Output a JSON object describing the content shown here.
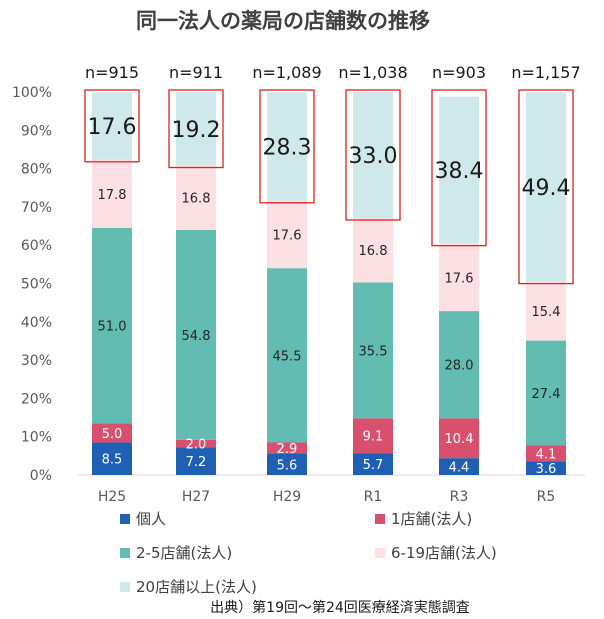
{
  "title": "同一法人の薬局の店舗数の推移",
  "source": "出典）第19回～第24回医療経済実態調査",
  "chart_data": {
    "type": "bar",
    "stacked": true,
    "categories": [
      "H25",
      "H27",
      "H29",
      "R1",
      "R3",
      "R5"
    ],
    "n_labels": [
      "n=915",
      "n=911",
      "n=1,089",
      "n=1,038",
      "n=903",
      "n=1,157"
    ],
    "y_ticks": [
      "0%",
      "10%",
      "20%",
      "30%",
      "40%",
      "50%",
      "60%",
      "70%",
      "80%",
      "90%",
      "100%"
    ],
    "ylim": [
      0,
      100
    ],
    "series": [
      {
        "name": "個人",
        "color": "#1f5fb4",
        "values": [
          8.5,
          7.2,
          5.6,
          5.7,
          4.4,
          3.6
        ],
        "labels": [
          "8.5",
          "7.2",
          "5.6",
          "5.7",
          "4.4",
          "3.6"
        ]
      },
      {
        "name": "1店舗(法人)",
        "color": "#d9506f",
        "values": [
          5.0,
          2.0,
          2.9,
          9.1,
          10.4,
          4.1
        ],
        "labels": [
          "5.0",
          "2.0",
          "2.9",
          "9.1",
          "10.4",
          "4.1"
        ]
      },
      {
        "name": "2-5店舗(法人)",
        "color": "#62bcb1",
        "values": [
          51.0,
          54.8,
          45.5,
          35.5,
          28.0,
          27.4
        ],
        "labels": [
          "51.0",
          "54.8",
          "45.5",
          "35.5",
          "28.0",
          "27.4"
        ]
      },
      {
        "name": "6-19店舗(法人)",
        "color": "#fde0e3",
        "values": [
          17.8,
          16.8,
          17.6,
          16.8,
          17.6,
          15.4
        ],
        "labels": [
          "17.8",
          "16.8",
          "17.6",
          "16.8",
          "17.6",
          "15.4"
        ]
      },
      {
        "name": "20店舗以上(法人)",
        "color": "#cfe9ea",
        "values": [
          17.6,
          19.2,
          28.3,
          33.0,
          38.4,
          49.4
        ],
        "labels": [
          "17.6",
          "19.2",
          "28.3",
          "33.0",
          "38.4",
          "49.4"
        ]
      }
    ],
    "highlight_series": "20店舗以上(法人)",
    "highlight_color": "#e02020",
    "grid": false,
    "legend": "bottom"
  }
}
